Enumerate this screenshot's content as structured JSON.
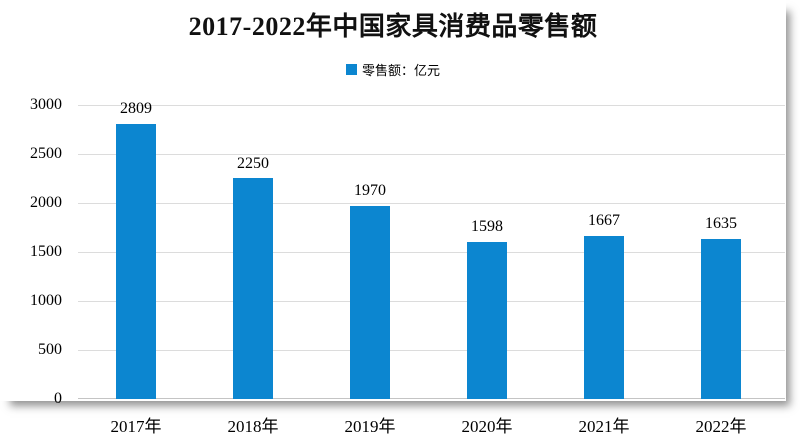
{
  "page": {
    "background_color": "#ffffff"
  },
  "chart_data": {
    "type": "bar",
    "title": "2017-2022年中国家具消费品零售额",
    "legend": {
      "marker": "square",
      "marker_color": "#0c86d0",
      "label": "零售额：亿元",
      "position": "top-center"
    },
    "categories": [
      "2017年",
      "2018年",
      "2019年",
      "2020年",
      "2021年",
      "2022年"
    ],
    "series": [
      {
        "name": "零售额：亿元",
        "color": "#0c86d0",
        "values": [
          2809,
          2250,
          1970,
          1598,
          1667,
          1635
        ]
      }
    ],
    "data_labels": [
      2809,
      2250,
      1970,
      1598,
      1667,
      1635
    ],
    "xlabel": "",
    "ylabel": "",
    "ylim": [
      0,
      3000
    ],
    "yticks": [
      0,
      500,
      1000,
      1500,
      2000,
      2500,
      3000
    ],
    "grid": true,
    "gridline_color": "#dcdcdc",
    "axis_line_color": "#c4c4c4",
    "text_color": "#000000",
    "title_color": "#111111"
  }
}
